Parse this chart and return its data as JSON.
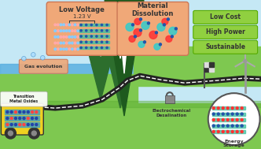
{
  "sky_color": "#c5e8f5",
  "ground_color": "#7ec850",
  "ground_dark": "#5aaa30",
  "water_color": "#5ab0e0",
  "road_color": "#222222",
  "mountain_color": "#2d6e2d",
  "mountain_dark": "#1e5a1e",
  "mountain_snow": "#ffffff",
  "box_orange": "#f0a878",
  "box_orange_edge": "#cc7755",
  "box_green": "#90d040",
  "box_green_edge": "#55aa00",
  "truck_color": "#f0d020",
  "green_labels": [
    "Low Cost",
    "High Power",
    "Sustainable"
  ],
  "voltage_label": "1.23 V"
}
